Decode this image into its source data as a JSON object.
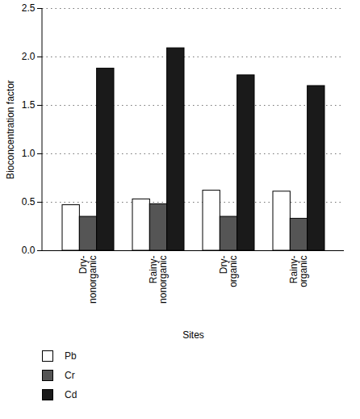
{
  "chart_data": {
    "type": "bar",
    "x_label": "Sites",
    "y_label": "Bioconcentration factor",
    "categories": [
      "Dry-nonorganic",
      "Rainy-nonorganic",
      "Dry-organic",
      "Rainy-organic"
    ],
    "series": [
      {
        "name": "Pb",
        "color": "#ffffff",
        "values": [
          0.47,
          0.53,
          0.62,
          0.61
        ]
      },
      {
        "name": "Cr",
        "color": "#555555",
        "values": [
          0.35,
          0.48,
          0.35,
          0.33
        ]
      },
      {
        "name": "Cd",
        "color": "#1a1a1a",
        "values": [
          1.88,
          2.09,
          1.81,
          1.7
        ]
      }
    ],
    "ylim": [
      0,
      2.5
    ],
    "yticks": [
      0,
      0.5,
      1,
      1.5,
      2,
      2.5
    ],
    "grid": true,
    "legend": "bottom"
  }
}
